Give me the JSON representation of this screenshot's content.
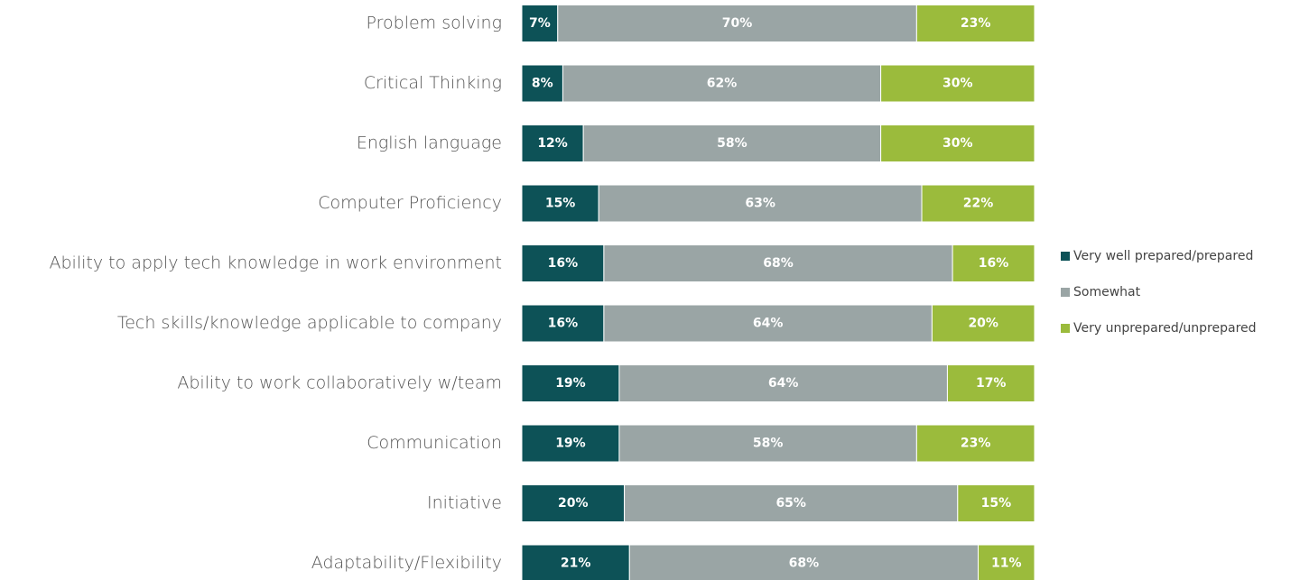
{
  "chart_data": {
    "type": "bar",
    "orientation": "horizontal",
    "stacked": true,
    "categories": [
      "Problem solving",
      "Critical Thinking",
      "English language",
      "Computer Proficiency",
      "Ability to apply tech knowledge in work environment",
      "Tech skills/knowledge applicable to company",
      "Ability to work collaboratively w/team",
      "Communication",
      "Initiative",
      "Adaptability/Flexibility"
    ],
    "xlim": [
      0,
      100
    ],
    "legend": "right",
    "series": [
      {
        "name": "Very well prepared/prepared",
        "color": "#0d5257",
        "values": [
          7,
          8,
          12,
          15,
          16,
          16,
          19,
          19,
          20,
          21
        ],
        "value_labels": [
          "7%",
          "8%",
          "12%",
          "15%",
          "16%",
          "16%",
          "19%",
          "19%",
          "20%",
          "21%"
        ]
      },
      {
        "name": "Somewhat",
        "color": "#9aa5a5",
        "values": [
          70,
          62,
          58,
          63,
          68,
          64,
          64,
          58,
          65,
          68
        ],
        "value_labels": [
          "70%",
          "62%",
          "58%",
          "63%",
          "68%",
          "64%",
          "64%",
          "58%",
          "65%",
          "68%"
        ]
      },
      {
        "name": "Very unprepared/unprepared",
        "color": "#9bbb3c",
        "values": [
          23,
          30,
          30,
          22,
          16,
          20,
          17,
          23,
          15,
          11
        ],
        "value_labels": [
          "23%",
          "30%",
          "30%",
          "22%",
          "16%",
          "20%",
          "17%",
          "23%",
          "15%",
          "11%"
        ]
      }
    ]
  }
}
